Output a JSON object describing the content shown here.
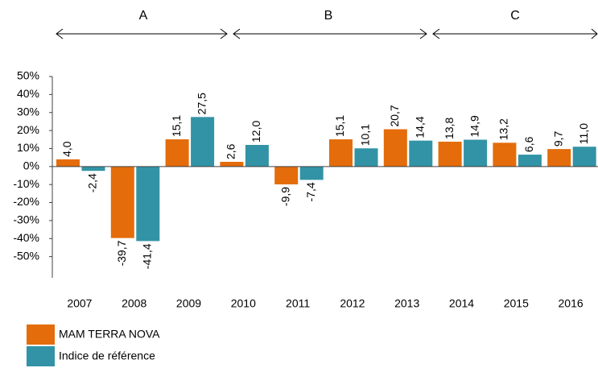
{
  "chart_data": {
    "type": "bar",
    "annotations": [
      "A",
      "B",
      "C"
    ],
    "categories": [
      "2007",
      "2008",
      "2009",
      "2010",
      "2011",
      "2012",
      "2013",
      "2014",
      "2015",
      "2016"
    ],
    "series": [
      {
        "name": "MAM TERRA NOVA",
        "color": "#e46c0a",
        "values": [
          4.0,
          -39.7,
          15.1,
          2.6,
          -9.9,
          15.1,
          20.7,
          13.8,
          13.2,
          9.7
        ],
        "value_labels": [
          "4,0",
          "-39,7",
          "15,1",
          "2,6",
          "-9,9",
          "15,1",
          "20,7",
          "13,8",
          "13,2",
          "9,7"
        ]
      },
      {
        "name": "Indice de référence",
        "color": "#3293a6",
        "values": [
          -2.4,
          -41.4,
          27.5,
          12.0,
          -7.4,
          10.1,
          14.4,
          14.9,
          6.6,
          11.0
        ],
        "value_labels": [
          "-2,4",
          "-41,4",
          "27,5",
          "12,0",
          "-7,4",
          "10,1",
          "14,4",
          "14,9",
          "6,6",
          "11,0"
        ]
      }
    ],
    "ylim": [
      -60,
      50
    ],
    "yticks": [
      {
        "value": -50,
        "label": "-50%"
      },
      {
        "value": -40,
        "label": "-40%"
      },
      {
        "value": -30,
        "label": "-30%"
      },
      {
        "value": -20,
        "label": "-20%"
      },
      {
        "value": -10,
        "label": "-10%"
      },
      {
        "value": 0,
        "label": "0%"
      },
      {
        "value": 10,
        "label": "10%"
      },
      {
        "value": 20,
        "label": "20%"
      },
      {
        "value": 30,
        "label": "30%"
      },
      {
        "value": 40,
        "label": "40%"
      },
      {
        "value": 50,
        "label": "50%"
      }
    ]
  }
}
